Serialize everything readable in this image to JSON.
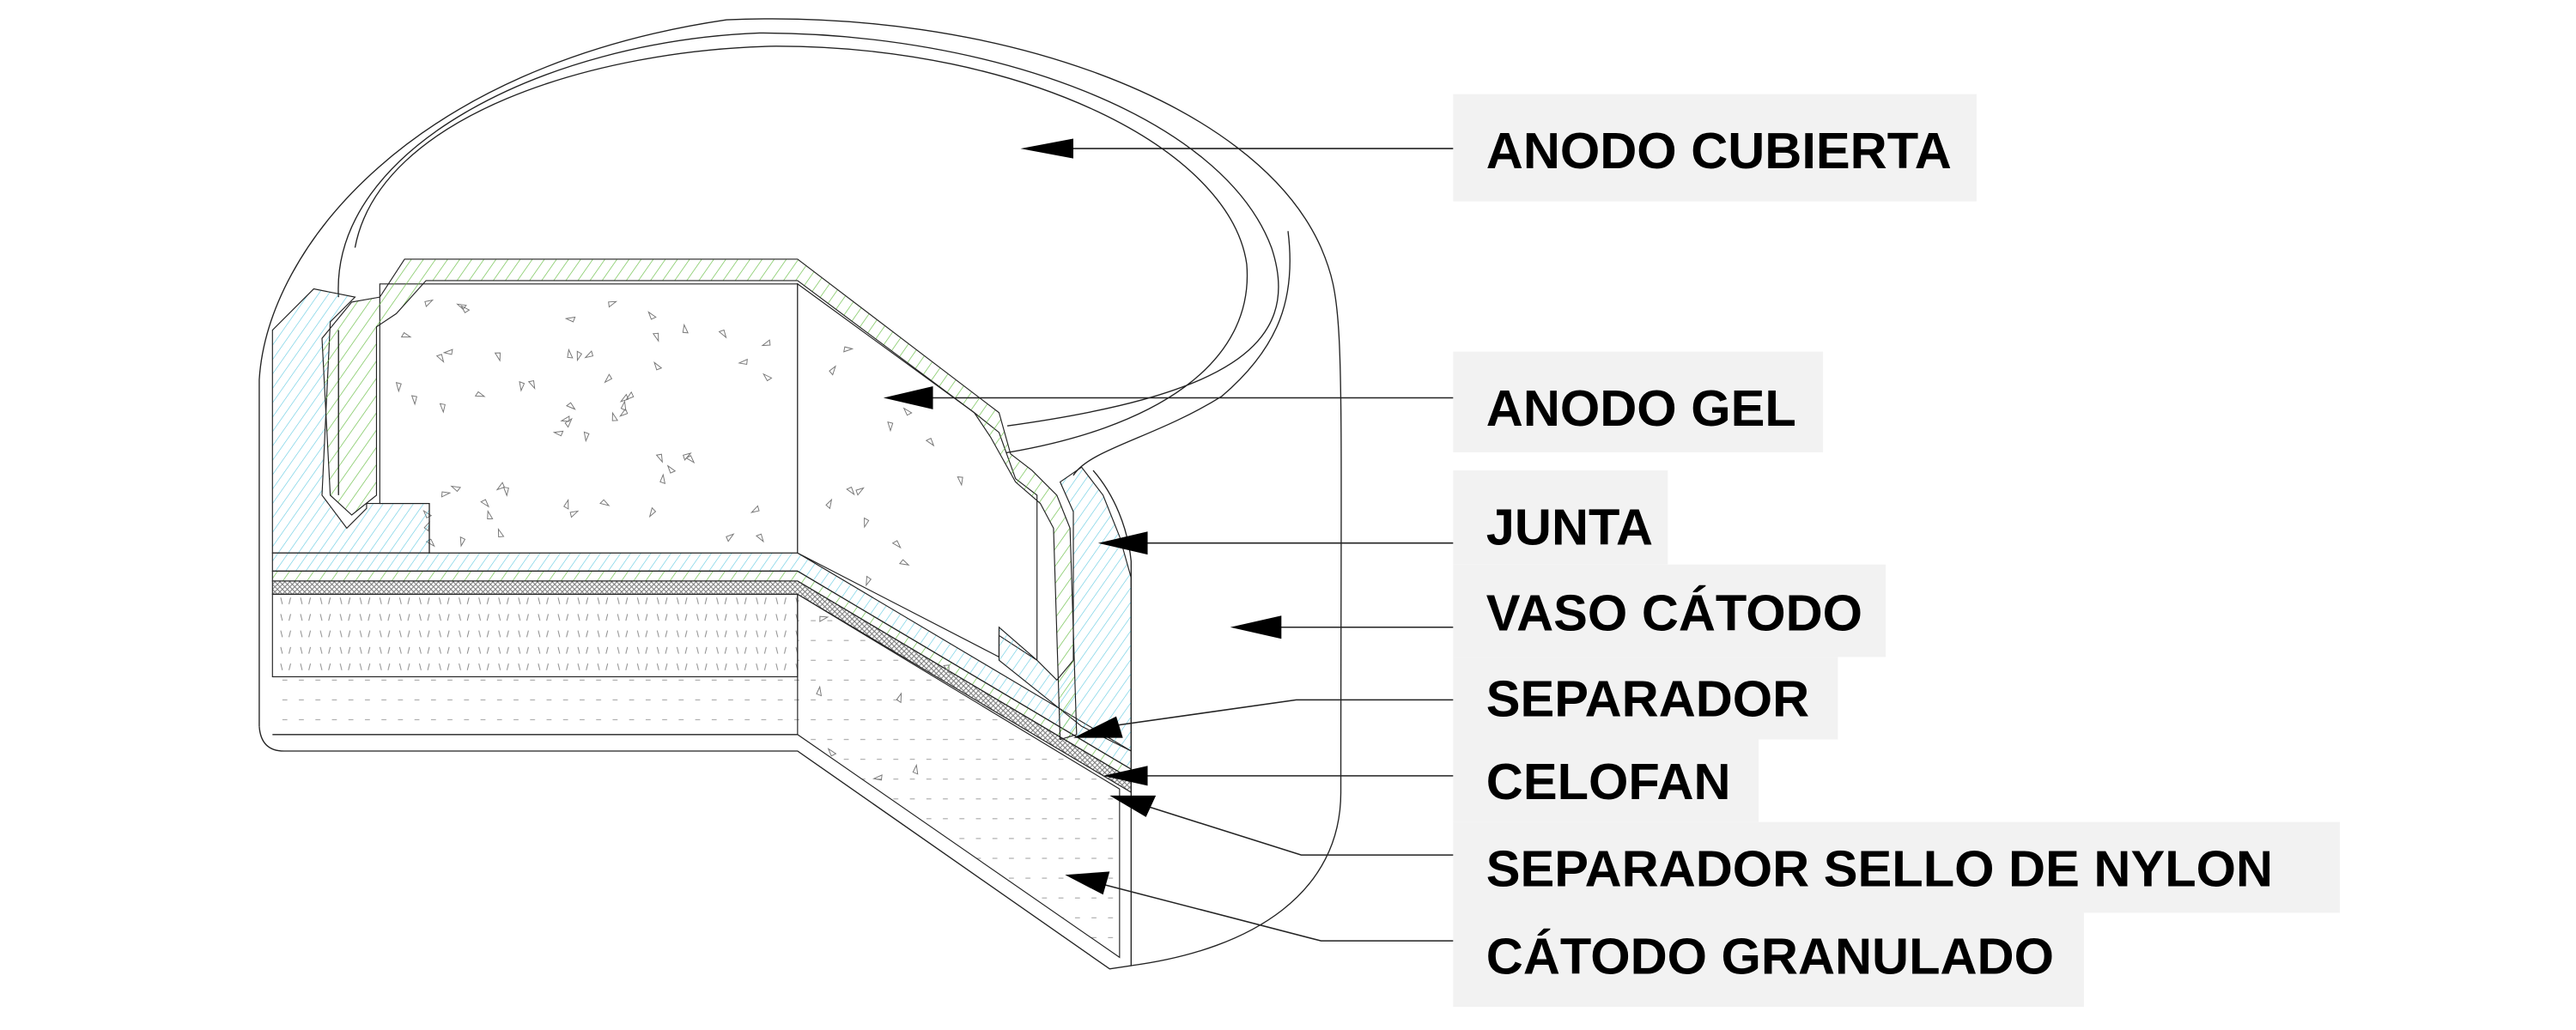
{
  "diagram": {
    "colors": {
      "gasket": "#5bc8e0",
      "anode_cover": "#6cc04a",
      "separator": "#8a8a8a",
      "label_background": "#f2f2f2",
      "line": "#222222"
    },
    "labels": [
      {
        "id": "anodo-cubierta",
        "text": "ANODO CUBIERTA"
      },
      {
        "id": "anodo-gel",
        "text": "ANODO GEL"
      },
      {
        "id": "junta",
        "text": "JUNTA"
      },
      {
        "id": "vaso-catodo",
        "text": "VASO CÁTODO"
      },
      {
        "id": "separador",
        "text": "SEPARADOR"
      },
      {
        "id": "celofan",
        "text": "CELOFAN"
      },
      {
        "id": "separador-sello-nylon",
        "text": "SEPARADOR SELLO DE NYLON"
      },
      {
        "id": "catodo-granulado",
        "text": "CÁTODO GRANULADO"
      }
    ]
  }
}
